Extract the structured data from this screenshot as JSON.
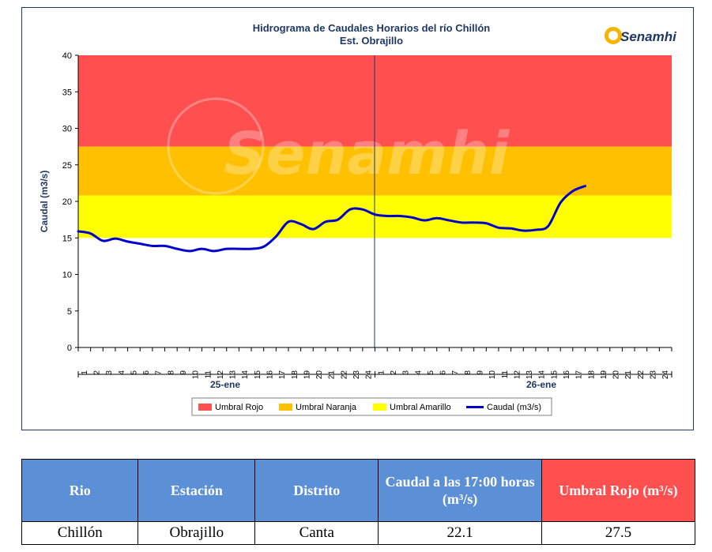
{
  "chart_data": {
    "type": "line",
    "title": "Hidrograma de Caudales Horarios del río Chillón",
    "subtitle": "Est. Obrajillo",
    "ylabel": "Caudal  (m3/s)",
    "ylim": [
      0,
      40
    ],
    "yticks": [
      "0",
      "5",
      "10",
      "15",
      "20",
      "25",
      "30",
      "35",
      "40"
    ],
    "xticks": [
      "1",
      "2",
      "3",
      "4",
      "5",
      "6",
      "7",
      "8",
      "9",
      "10",
      "11",
      "12",
      "13",
      "14",
      "15",
      "16",
      "17",
      "18",
      "19",
      "20",
      "21",
      "22",
      "23",
      "24",
      "1",
      "2",
      "3",
      "4",
      "5",
      "6",
      "7",
      "8",
      "9",
      "10",
      "11",
      "12",
      "13",
      "14",
      "15",
      "16",
      "17",
      "18",
      "19",
      "20",
      "21",
      "22",
      "23",
      "24"
    ],
    "days": [
      "25-ene",
      "26-ene"
    ],
    "thresholds": [
      {
        "name": "Umbral Rojo",
        "from": 27.5,
        "to": 40,
        "color": "#ff4f4f"
      },
      {
        "name": "Umbral Naranja",
        "from": 20.8,
        "to": 27.5,
        "color": "#ffc000"
      },
      {
        "name": "Umbral Amarillo",
        "from": 15,
        "to": 20.8,
        "color": "#ffff00"
      }
    ],
    "series": [
      {
        "name": "Caudal (m3/s)",
        "color": "#0000cc",
        "values": [
          15.9,
          15.6,
          14.6,
          14.9,
          14.5,
          14.2,
          13.9,
          13.9,
          13.5,
          13.2,
          13.5,
          13.2,
          13.5,
          13.5,
          13.5,
          13.8,
          15.2,
          17.2,
          16.9,
          16.2,
          17.2,
          17.5,
          18.9,
          18.9,
          18.2,
          18.0,
          18.0,
          17.8,
          17.4,
          17.7,
          17.4,
          17.1,
          17.1,
          17.0,
          16.4,
          16.3,
          16.0,
          16.1,
          16.6,
          19.8,
          21.4,
          22.1
        ]
      }
    ],
    "legend_position": "bottom",
    "grid": false
  },
  "logo": {
    "text": "Senamhi"
  },
  "watermark": {
    "text": "Senamhi"
  },
  "table": {
    "headers": [
      "Rio",
      "Estación",
      "Distrito",
      "Caudal a las 17:00 horas (m³/s)",
      "Umbral Rojo (m³/s)"
    ],
    "row": [
      "Chillón",
      "Obrajillo",
      "Canta",
      "22.1",
      "27.5"
    ]
  }
}
